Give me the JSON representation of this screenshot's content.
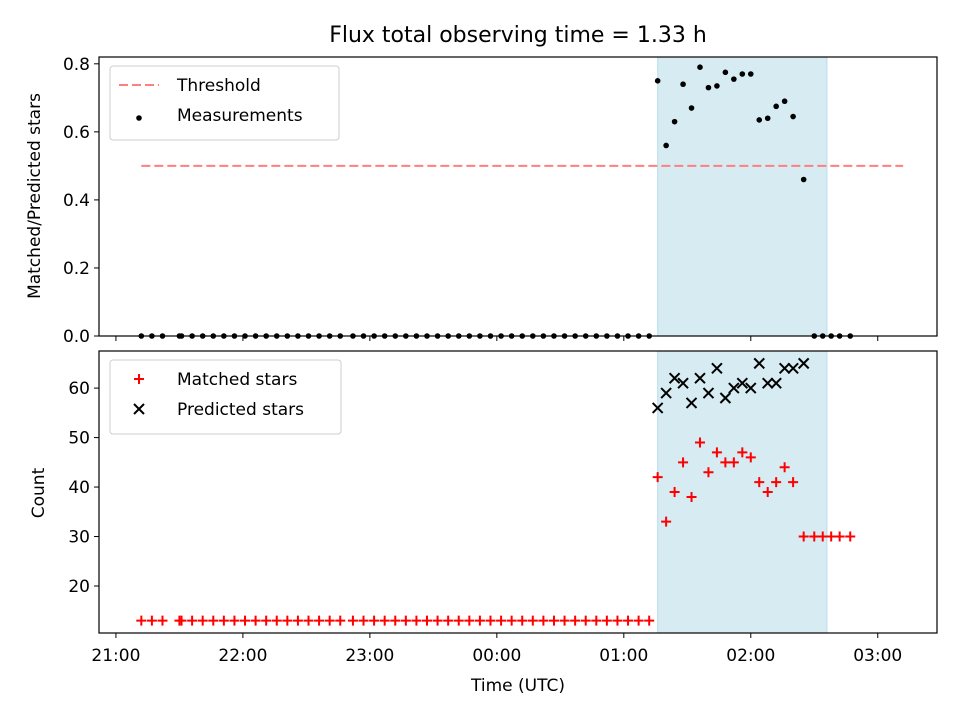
{
  "chart_data": [
    {
      "type": "scatter",
      "title": "Flux total observing time = 1.33 h",
      "xlabel": "",
      "ylabel": "Matched/Predicted stars",
      "ylim": [
        0,
        0.82
      ],
      "yticks": [
        "0.0",
        "0.2",
        "0.4",
        "0.6",
        "0.8"
      ],
      "highlight_span": {
        "from": "01:16",
        "to": "02:36",
        "color": "#add8e6"
      },
      "legend_position": "top-left",
      "threshold": {
        "name": "Threshold",
        "value": 0.5,
        "x_from": "21:12",
        "x_to": "03:12",
        "color": "#ff7f7f",
        "style": "dashed"
      },
      "series": [
        {
          "name": "Measurements",
          "color": "#000000",
          "marker": "dot",
          "points": [
            [
              "21:12",
              0
            ],
            [
              "21:17",
              0
            ],
            [
              "21:22",
              0
            ],
            [
              "21:30",
              0
            ],
            [
              "21:31",
              0
            ],
            [
              "21:36",
              0
            ],
            [
              "21:41",
              0
            ],
            [
              "21:46",
              0
            ],
            [
              "21:51",
              0
            ],
            [
              "21:56",
              0
            ],
            [
              "22:01",
              0
            ],
            [
              "22:06",
              0
            ],
            [
              "22:11",
              0
            ],
            [
              "22:16",
              0
            ],
            [
              "22:21",
              0
            ],
            [
              "22:26",
              0
            ],
            [
              "22:31",
              0
            ],
            [
              "22:36",
              0
            ],
            [
              "22:41",
              0
            ],
            [
              "22:46",
              0
            ],
            [
              "22:52",
              0
            ],
            [
              "22:57",
              0
            ],
            [
              "23:02",
              0
            ],
            [
              "23:07",
              0
            ],
            [
              "23:12",
              0
            ],
            [
              "23:17",
              0
            ],
            [
              "23:22",
              0
            ],
            [
              "23:27",
              0
            ],
            [
              "23:32",
              0
            ],
            [
              "23:37",
              0
            ],
            [
              "23:42",
              0
            ],
            [
              "23:47",
              0
            ],
            [
              "23:52",
              0
            ],
            [
              "23:57",
              0
            ],
            [
              "00:02",
              0
            ],
            [
              "00:07",
              0
            ],
            [
              "00:12",
              0
            ],
            [
              "00:17",
              0
            ],
            [
              "00:22",
              0
            ],
            [
              "00:27",
              0
            ],
            [
              "00:32",
              0
            ],
            [
              "00:37",
              0
            ],
            [
              "00:42",
              0
            ],
            [
              "00:47",
              0
            ],
            [
              "00:52",
              0
            ],
            [
              "00:57",
              0
            ],
            [
              "01:02",
              0
            ],
            [
              "01:07",
              0
            ],
            [
              "01:12",
              0
            ],
            [
              "01:16",
              0.75
            ],
            [
              "01:20",
              0.56
            ],
            [
              "01:24",
              0.63
            ],
            [
              "01:28",
              0.74
            ],
            [
              "01:32",
              0.67
            ],
            [
              "01:36",
              0.79
            ],
            [
              "01:40",
              0.73
            ],
            [
              "01:44",
              0.735
            ],
            [
              "01:48",
              0.775
            ],
            [
              "01:52",
              0.755
            ],
            [
              "01:56",
              0.77
            ],
            [
              "02:00",
              0.77
            ],
            [
              "02:04",
              0.635
            ],
            [
              "02:08",
              0.64
            ],
            [
              "02:12",
              0.675
            ],
            [
              "02:16",
              0.69
            ],
            [
              "02:20",
              0.645
            ],
            [
              "02:25",
              0.46
            ],
            [
              "02:30",
              0
            ],
            [
              "02:34",
              0
            ],
            [
              "02:38",
              0
            ],
            [
              "02:42",
              0
            ],
            [
              "02:47",
              0
            ]
          ]
        }
      ]
    },
    {
      "type": "scatter",
      "title": "",
      "xlabel": "Time (UTC)",
      "ylabel": "Count",
      "ylim": [
        10.5,
        67.5
      ],
      "yticks": [
        "20",
        "30",
        "40",
        "50",
        "60"
      ],
      "xticks": [
        "21:00",
        "22:00",
        "23:00",
        "00:00",
        "01:00",
        "02:00",
        "03:00"
      ],
      "highlight_span": {
        "from": "01:16",
        "to": "02:36",
        "color": "#add8e6"
      },
      "legend_position": "top-left",
      "series": [
        {
          "name": "Matched stars",
          "color": "#ff0000",
          "marker": "plus",
          "points": [
            [
              "21:12",
              13
            ],
            [
              "21:17",
              13
            ],
            [
              "21:22",
              13
            ],
            [
              "21:30",
              13
            ],
            [
              "21:31",
              13
            ],
            [
              "21:36",
              13
            ],
            [
              "21:41",
              13
            ],
            [
              "21:46",
              13
            ],
            [
              "21:51",
              13
            ],
            [
              "21:56",
              13
            ],
            [
              "22:01",
              13
            ],
            [
              "22:06",
              13
            ],
            [
              "22:11",
              13
            ],
            [
              "22:16",
              13
            ],
            [
              "22:21",
              13
            ],
            [
              "22:26",
              13
            ],
            [
              "22:31",
              13
            ],
            [
              "22:36",
              13
            ],
            [
              "22:41",
              13
            ],
            [
              "22:46",
              13
            ],
            [
              "22:52",
              13
            ],
            [
              "22:57",
              13
            ],
            [
              "23:02",
              13
            ],
            [
              "23:07",
              13
            ],
            [
              "23:12",
              13
            ],
            [
              "23:17",
              13
            ],
            [
              "23:22",
              13
            ],
            [
              "23:27",
              13
            ],
            [
              "23:32",
              13
            ],
            [
              "23:37",
              13
            ],
            [
              "23:42",
              13
            ],
            [
              "23:47",
              13
            ],
            [
              "23:52",
              13
            ],
            [
              "23:57",
              13
            ],
            [
              "00:02",
              13
            ],
            [
              "00:07",
              13
            ],
            [
              "00:12",
              13
            ],
            [
              "00:17",
              13
            ],
            [
              "00:22",
              13
            ],
            [
              "00:27",
              13
            ],
            [
              "00:32",
              13
            ],
            [
              "00:37",
              13
            ],
            [
              "00:42",
              13
            ],
            [
              "00:47",
              13
            ],
            [
              "00:52",
              13
            ],
            [
              "00:57",
              13
            ],
            [
              "01:02",
              13
            ],
            [
              "01:07",
              13
            ],
            [
              "01:12",
              13
            ],
            [
              "01:16",
              42
            ],
            [
              "01:20",
              33
            ],
            [
              "01:24",
              39
            ],
            [
              "01:28",
              45
            ],
            [
              "01:32",
              38
            ],
            [
              "01:36",
              49
            ],
            [
              "01:40",
              43
            ],
            [
              "01:44",
              47
            ],
            [
              "01:48",
              45
            ],
            [
              "01:52",
              45
            ],
            [
              "01:56",
              47
            ],
            [
              "02:00",
              46
            ],
            [
              "02:04",
              41
            ],
            [
              "02:08",
              39
            ],
            [
              "02:12",
              41
            ],
            [
              "02:16",
              44
            ],
            [
              "02:20",
              41
            ],
            [
              "02:25",
              30
            ],
            [
              "02:30",
              30
            ],
            [
              "02:34",
              30
            ],
            [
              "02:38",
              30
            ],
            [
              "02:42",
              30
            ],
            [
              "02:47",
              30
            ]
          ]
        },
        {
          "name": "Predicted stars",
          "color": "#000000",
          "marker": "x",
          "points": [
            [
              "01:16",
              56
            ],
            [
              "01:20",
              59
            ],
            [
              "01:24",
              62
            ],
            [
              "01:28",
              61
            ],
            [
              "01:32",
              57
            ],
            [
              "01:36",
              62
            ],
            [
              "01:40",
              59
            ],
            [
              "01:44",
              64
            ],
            [
              "01:48",
              58
            ],
            [
              "01:52",
              60
            ],
            [
              "01:56",
              61
            ],
            [
              "02:00",
              60
            ],
            [
              "02:04",
              65
            ],
            [
              "02:08",
              61
            ],
            [
              "02:12",
              61
            ],
            [
              "02:16",
              64
            ],
            [
              "02:20",
              64
            ],
            [
              "02:25",
              65
            ]
          ]
        }
      ]
    }
  ]
}
